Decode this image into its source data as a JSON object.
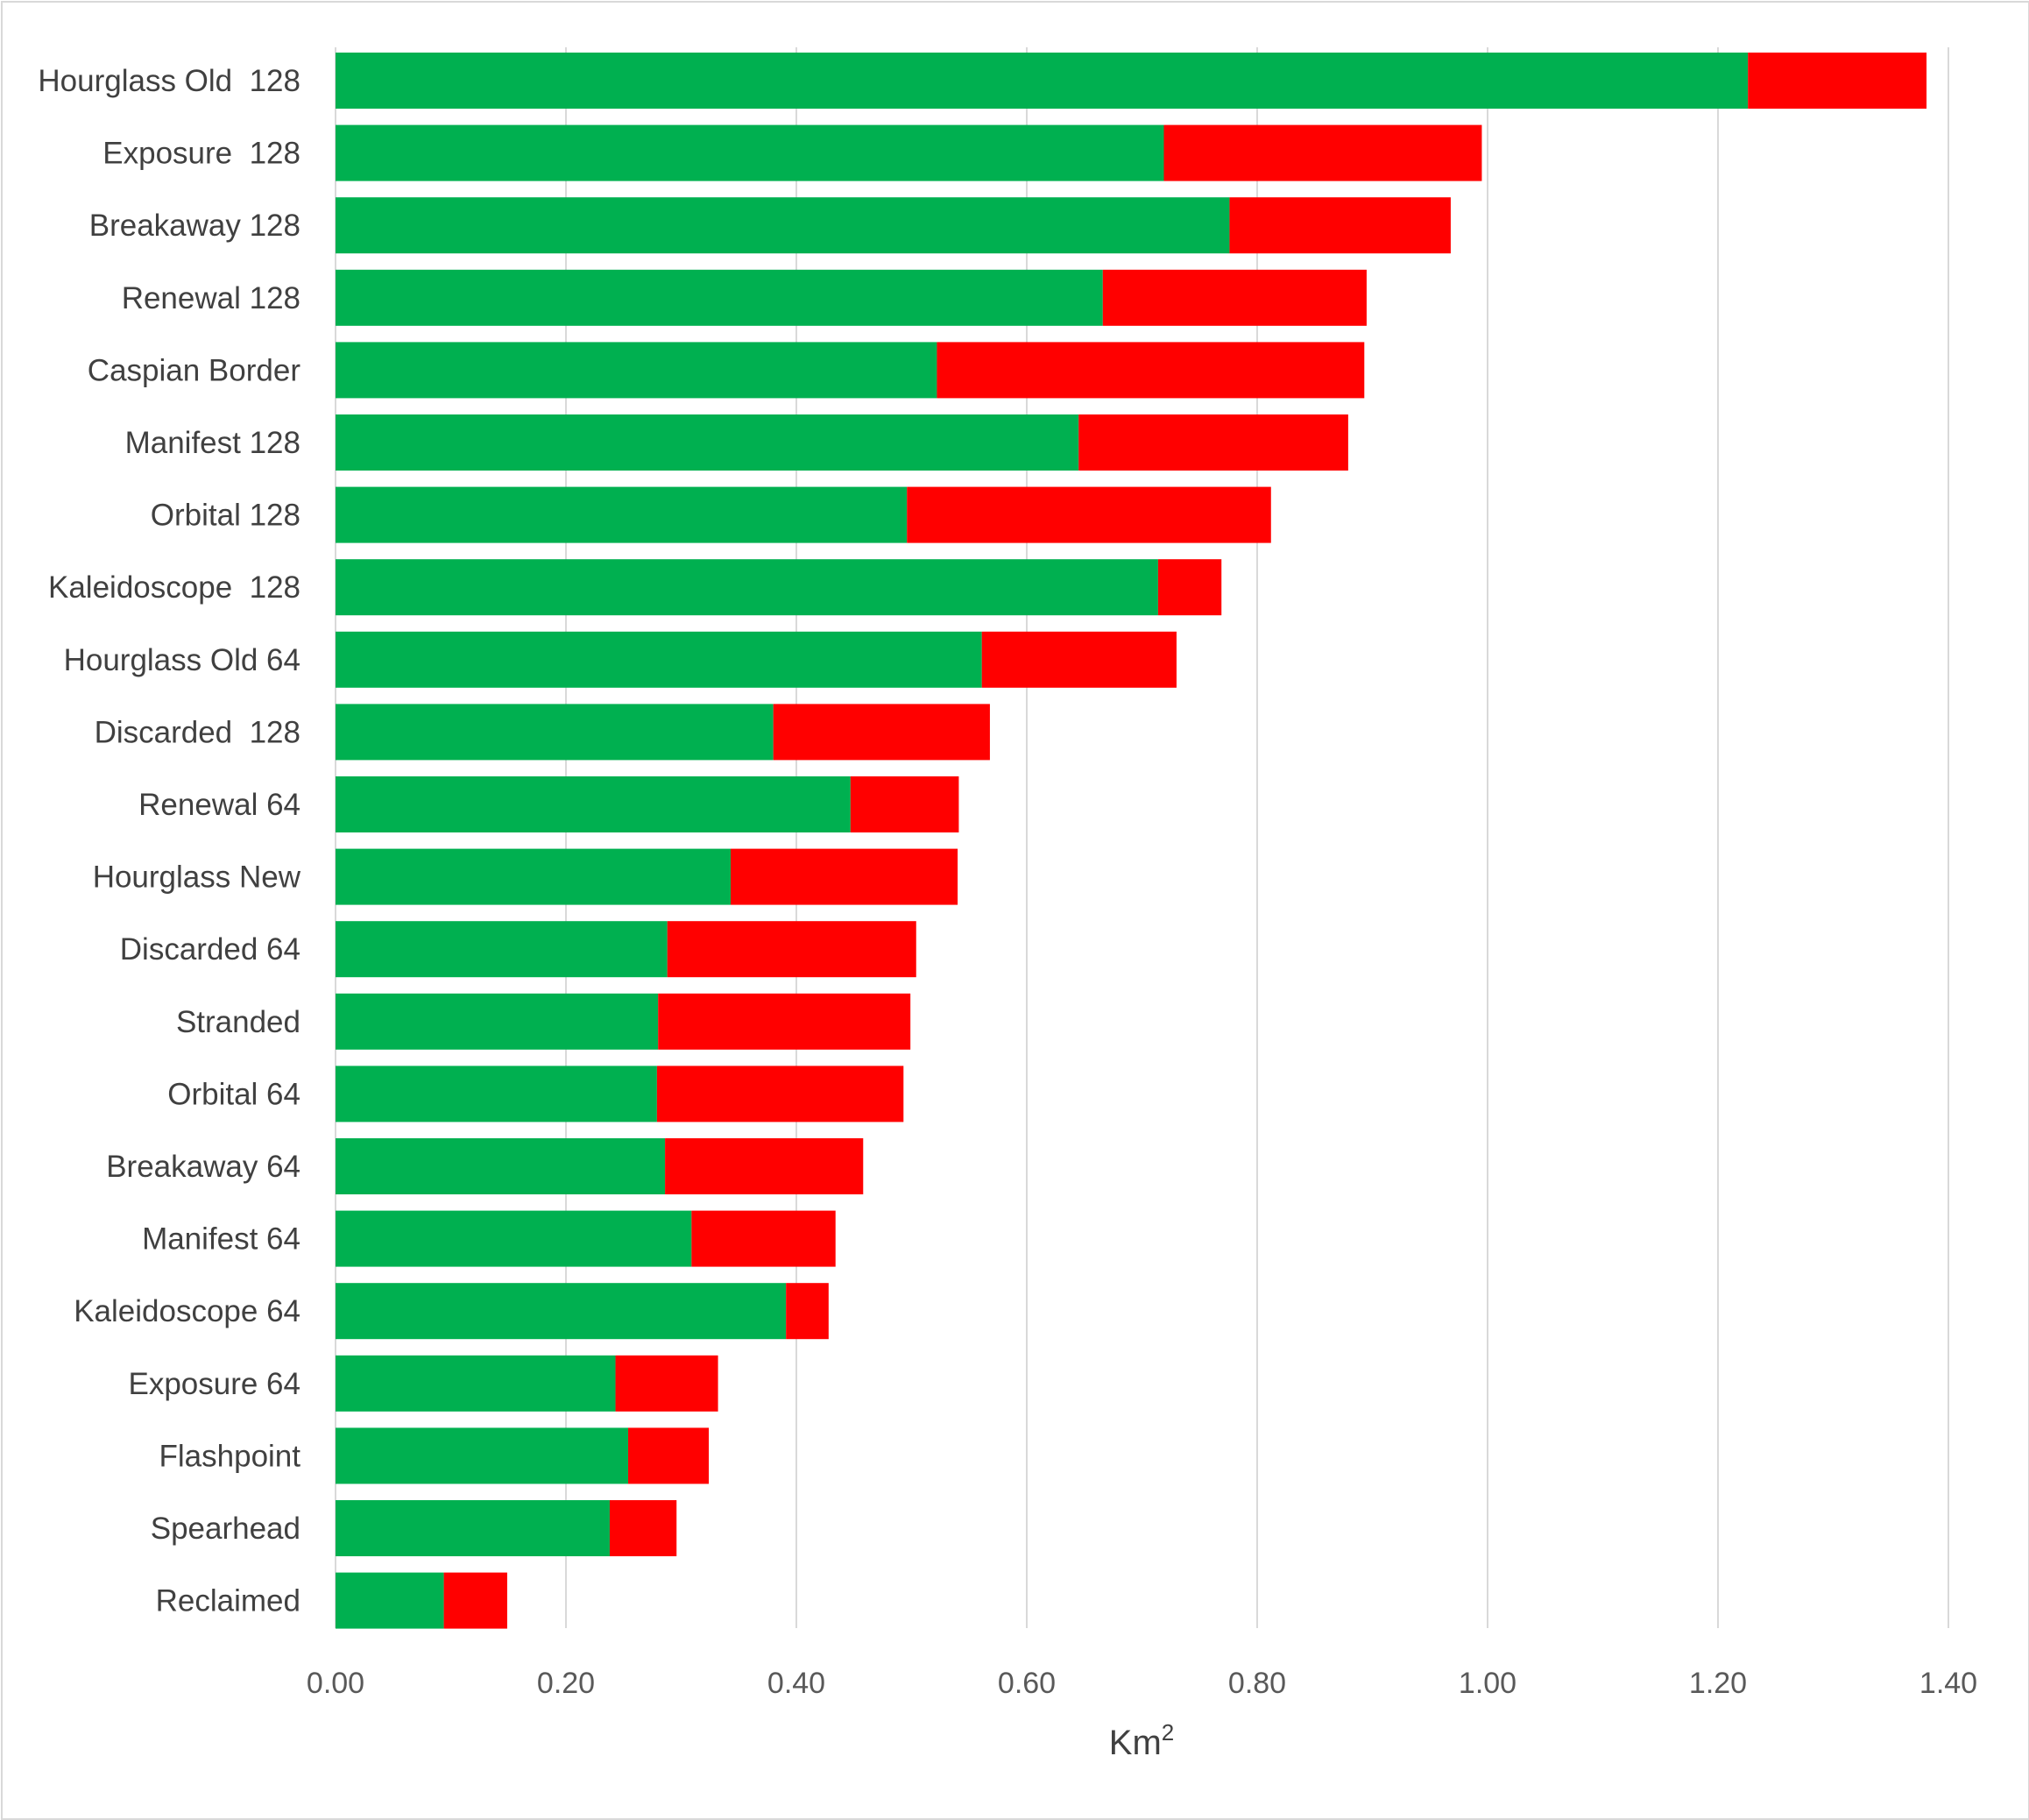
{
  "chart_data": {
    "type": "bar",
    "orientation": "horizontal",
    "stacked": true,
    "title": "",
    "xlabel": "Km²",
    "xlabel_base": "Km",
    "xlabel_sup": "2",
    "ylabel": "",
    "xlim": [
      0,
      1.4
    ],
    "xticks": [
      0.0,
      0.2,
      0.4,
      0.6,
      0.8,
      1.0,
      1.2,
      1.4
    ],
    "xtick_labels": [
      "0.00",
      "0.20",
      "0.40",
      "0.60",
      "0.80",
      "1.00",
      "1.20",
      "1.40"
    ],
    "grid": "vertical",
    "legend": "none",
    "categories": [
      "Hourglass Old  128",
      "Exposure  128",
      "Breakaway 128",
      "Renewal 128",
      "Caspian Border",
      "Manifest 128",
      "Orbital 128",
      "Kaleidoscope  128",
      "Hourglass Old 64",
      "Discarded  128",
      "Renewal 64",
      "Hourglass New",
      "Discarded 64",
      "Stranded",
      "Orbital 64",
      "Breakaway 64",
      "Manifest 64",
      "Kaleidoscope 64",
      "Exposure 64",
      "Flashpoint",
      "Spearhead",
      "Reclaimed"
    ],
    "series": [
      {
        "name": "green",
        "color": "#00b050",
        "values": [
          1.226,
          0.719,
          0.776,
          0.666,
          0.522,
          0.645,
          0.496,
          0.714,
          0.561,
          0.38,
          0.447,
          0.343,
          0.288,
          0.28,
          0.279,
          0.286,
          0.309,
          0.391,
          0.243,
          0.254,
          0.238,
          0.094
        ]
      },
      {
        "name": "red",
        "color": "#ff0000",
        "values": [
          0.155,
          0.276,
          0.192,
          0.229,
          0.371,
          0.234,
          0.316,
          0.055,
          0.169,
          0.188,
          0.094,
          0.197,
          0.216,
          0.219,
          0.214,
          0.172,
          0.125,
          0.037,
          0.089,
          0.07,
          0.058,
          0.055
        ]
      }
    ]
  }
}
